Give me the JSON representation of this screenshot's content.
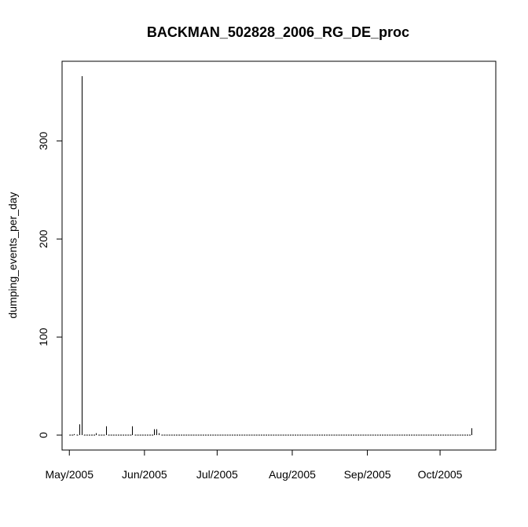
{
  "chart_data": {
    "type": "bar",
    "title": "BACKMAN_502828_2006_RG_DE_proc",
    "xlabel": "",
    "ylabel": "dumping_events_per_day",
    "x_axis_type": "date",
    "xlim": [
      "2005-04-28",
      "2005-10-24"
    ],
    "ylim": [
      0,
      368
    ],
    "x_ticks": [
      {
        "date": "2005-05-01",
        "label": "May/2005"
      },
      {
        "date": "2005-06-01",
        "label": "Jun/2005"
      },
      {
        "date": "2005-07-01",
        "label": "Jul/2005"
      },
      {
        "date": "2005-08-01",
        "label": "Aug/2005"
      },
      {
        "date": "2005-09-01",
        "label": "Sep/2005"
      },
      {
        "date": "2005-10-01",
        "label": "Oct/2005"
      }
    ],
    "y_ticks": [
      0,
      100,
      200,
      300
    ],
    "grid": false,
    "legend": "none",
    "baseline_range": [
      "2005-05-01",
      "2005-10-13"
    ],
    "events": [
      {
        "date": "2005-05-03",
        "value": 1
      },
      {
        "date": "2005-05-05",
        "value": 11
      },
      {
        "date": "2005-05-06",
        "value": 366
      },
      {
        "date": "2005-05-12",
        "value": 2
      },
      {
        "date": "2005-05-16",
        "value": 9
      },
      {
        "date": "2005-05-27",
        "value": 9
      },
      {
        "date": "2005-06-05",
        "value": 6
      },
      {
        "date": "2005-06-06",
        "value": 6
      },
      {
        "date": "2005-06-07",
        "value": 2
      },
      {
        "date": "2005-10-14",
        "value": 7
      }
    ],
    "colors": {
      "line": "#000000",
      "background": "#ffffff"
    }
  }
}
